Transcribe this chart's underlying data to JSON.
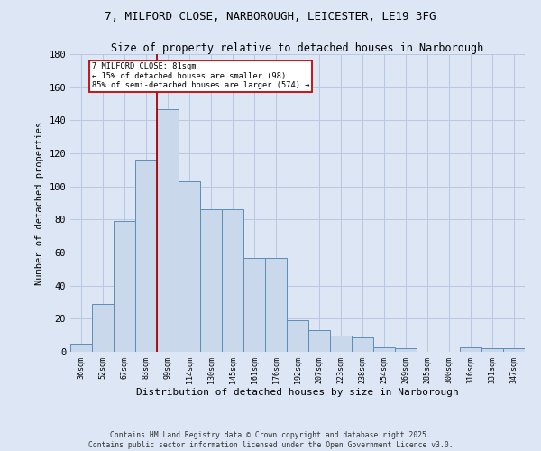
{
  "title_line1": "7, MILFORD CLOSE, NARBOROUGH, LEICESTER, LE19 3FG",
  "title_line2": "Size of property relative to detached houses in Narborough",
  "xlabel": "Distribution of detached houses by size in Narborough",
  "ylabel": "Number of detached properties",
  "categories": [
    "36sqm",
    "52sqm",
    "67sqm",
    "83sqm",
    "99sqm",
    "114sqm",
    "130sqm",
    "145sqm",
    "161sqm",
    "176sqm",
    "192sqm",
    "207sqm",
    "223sqm",
    "238sqm",
    "254sqm",
    "269sqm",
    "285sqm",
    "300sqm",
    "316sqm",
    "331sqm",
    "347sqm"
  ],
  "values": [
    5,
    29,
    79,
    116,
    147,
    103,
    86,
    86,
    57,
    57,
    19,
    13,
    10,
    9,
    3,
    2,
    0,
    0,
    3,
    2,
    2
  ],
  "bar_color": "#c9d9eb",
  "bar_edge_color": "#5b8db8",
  "background_color": "#dce6f5",
  "plot_bg_color": "#dce6f5",
  "grid_color": "#b8c8e0",
  "red_line_x": 3.5,
  "annotation_text_line1": "7 MILFORD CLOSE: 81sqm",
  "annotation_text_line2": "← 15% of detached houses are smaller (98)",
  "annotation_text_line3": "85% of semi-detached houses are larger (574) →",
  "annotation_box_color": "#ffffff",
  "annotation_box_edge_color": "#cc0000",
  "footer_line1": "Contains HM Land Registry data © Crown copyright and database right 2025.",
  "footer_line2": "Contains public sector information licensed under the Open Government Licence v3.0.",
  "ylim": [
    0,
    180
  ],
  "yticks": [
    0,
    20,
    40,
    60,
    80,
    100,
    120,
    140,
    160,
    180
  ]
}
